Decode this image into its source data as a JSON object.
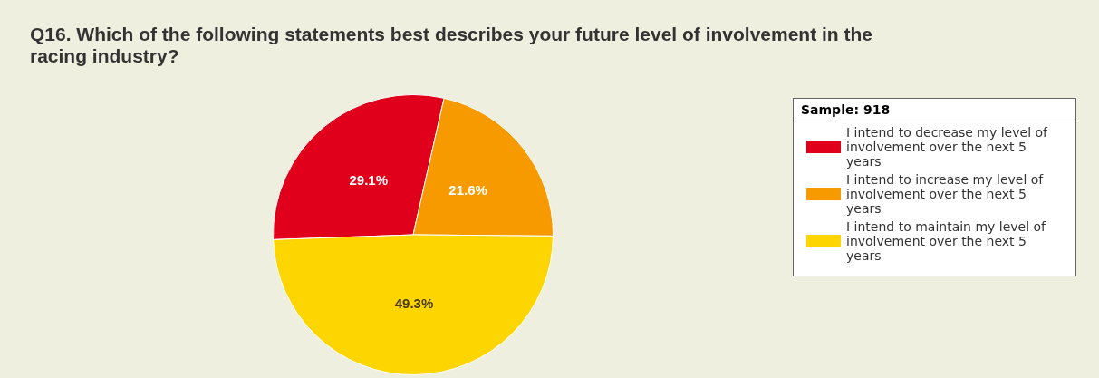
{
  "chart_data": {
    "type": "pie",
    "title": "Q16. Which of the following statements best describes your future level of involvement in the racing industry?",
    "legend_title": "Sample: 918",
    "categories": [
      "I intend to decrease my level of involvement over the next 5 years",
      "I intend to increase my level of involvement over the next 5 years",
      "I intend to maintain my level of involvement over the next 5 years"
    ],
    "values": [
      29.1,
      21.6,
      49.3
    ],
    "colors": [
      "#e0001b",
      "#f79a00",
      "#fdd500"
    ],
    "value_labels": [
      "29.1%",
      "21.6%",
      "49.3%"
    ],
    "legend": "right"
  }
}
